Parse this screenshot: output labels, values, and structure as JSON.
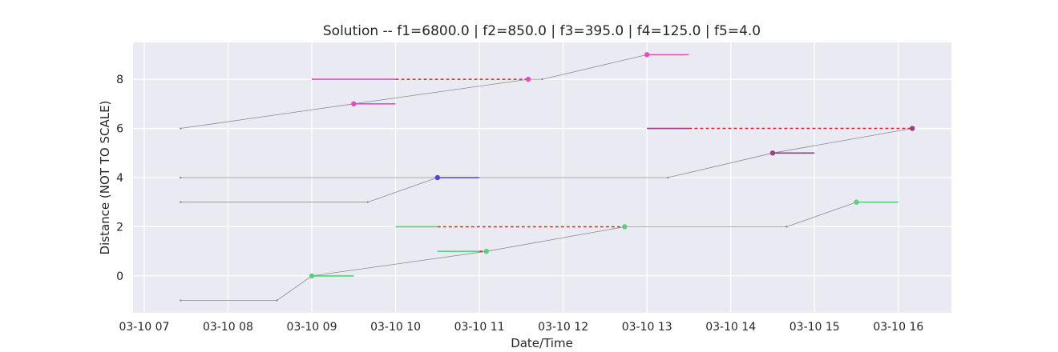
{
  "chart_data": {
    "type": "line",
    "title": "Solution -- f1=6800.0 | f2=850.0 | f3=395.0 | f4=125.0 | f5=4.0",
    "xlabel": "Date/Time",
    "ylabel": "Distance (NOT TO SCALE)",
    "x_tick_labels": [
      "03-10 07",
      "03-10 08",
      "03-10 09",
      "03-10 10",
      "03-10 11",
      "03-10 12",
      "03-10 13",
      "03-10 14",
      "03-10 15",
      "03-10 16"
    ],
    "y_ticks": [
      0,
      2,
      4,
      6,
      8
    ],
    "xlim": [
      "03-10 06:52",
      "03-10 16:38"
    ],
    "ylim": [
      -1.5,
      9.5
    ],
    "grid": true,
    "background": "#eaeaf2",
    "route_color": "#8c8c8c",
    "late_color": "#e0202a",
    "routes": [
      {
        "points": [
          [
            "03-10 07:26",
            -1
          ],
          [
            "03-10 08:35",
            -1
          ],
          [
            "03-10 09:00",
            0
          ],
          [
            "03-10 11:05",
            1
          ],
          [
            "03-10 12:44",
            2
          ],
          [
            "03-10 14:40",
            2
          ],
          [
            "03-10 15:30",
            3
          ]
        ]
      },
      {
        "points": [
          [
            "03-10 07:26",
            3
          ],
          [
            "03-10 09:40",
            3
          ],
          [
            "03-10 10:30",
            4
          ]
        ]
      },
      {
        "points": [
          [
            "03-10 07:26",
            4
          ],
          [
            "03-10 13:15",
            4
          ],
          [
            "03-10 14:30",
            5
          ],
          [
            "03-10 16:10",
            6
          ]
        ]
      },
      {
        "points": [
          [
            "03-10 07:26",
            6
          ],
          [
            "03-10 09:30",
            7
          ],
          [
            "03-10 11:35",
            8
          ],
          [
            "03-10 11:45",
            8
          ],
          [
            "03-10 13:00",
            9
          ]
        ]
      }
    ],
    "stops": [
      {
        "y": 0,
        "arrival": "03-10 09:00",
        "window": [
          "03-10 09:00",
          "03-10 09:30"
        ],
        "late": null,
        "color": "#57d27a"
      },
      {
        "y": 1,
        "arrival": "03-10 11:05",
        "window": [
          "03-10 10:30",
          "03-10 11:00"
        ],
        "late": [
          "03-10 11:00",
          "03-10 11:05"
        ],
        "color": "#57d27a"
      },
      {
        "y": 2,
        "arrival": "03-10 12:44",
        "window": [
          "03-10 10:00",
          "03-10 10:30"
        ],
        "late": [
          "03-10 10:30",
          "03-10 12:44"
        ],
        "color": "#57d27a"
      },
      {
        "y": 3,
        "arrival": "03-10 15:30",
        "window": [
          "03-10 15:30",
          "03-10 16:00"
        ],
        "late": null,
        "color": "#57d27a"
      },
      {
        "y": 4,
        "arrival": "03-10 10:30",
        "window": [
          "03-10 10:30",
          "03-10 11:00"
        ],
        "late": null,
        "color": "#5a3fd8"
      },
      {
        "y": 5,
        "arrival": "03-10 14:30",
        "window": [
          "03-10 14:30",
          "03-10 15:00"
        ],
        "late": null,
        "color": "#9b3f82"
      },
      {
        "y": 6,
        "arrival": "03-10 16:10",
        "window": [
          "03-10 13:00",
          "03-10 13:30"
        ],
        "late": [
          "03-10 13:30",
          "03-10 16:10"
        ],
        "color": "#9b3f82"
      },
      {
        "y": 7,
        "arrival": "03-10 09:30",
        "window": [
          "03-10 09:30",
          "03-10 10:00"
        ],
        "late": null,
        "color": "#e04fc0"
      },
      {
        "y": 8,
        "arrival": "03-10 11:35",
        "window": [
          "03-10 09:00",
          "03-10 10:00"
        ],
        "late": [
          "03-10 10:00",
          "03-10 11:35"
        ],
        "color": "#e04fc0"
      },
      {
        "y": 9,
        "arrival": "03-10 13:00",
        "window": [
          "03-10 13:00",
          "03-10 13:30"
        ],
        "late": null,
        "color": "#e04fc0"
      }
    ]
  }
}
